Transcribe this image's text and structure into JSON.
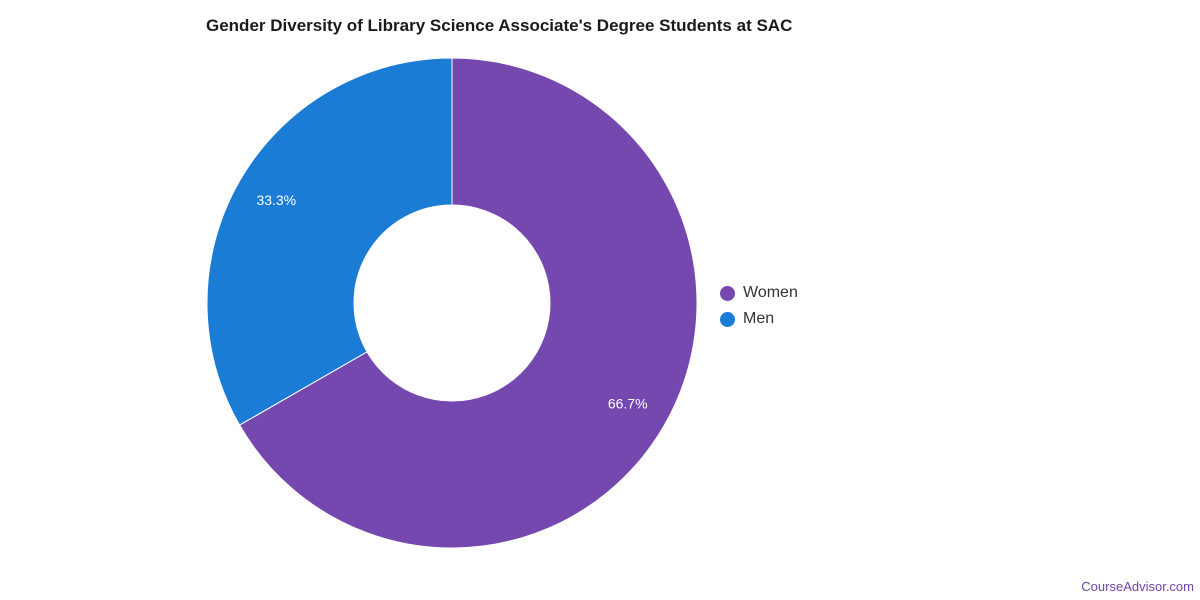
{
  "chart_data": {
    "type": "pie",
    "title": "Gender Diversity of Library Science Associate's Degree Students at SAC",
    "categories": [
      "Women",
      "Men"
    ],
    "values": [
      66.7,
      33.3
    ],
    "labels": [
      "66.7%",
      "33.3%"
    ],
    "colors": [
      "#7448ae",
      "#1a7cd4"
    ],
    "donut": true,
    "legend_position": "right"
  },
  "legend": {
    "items": [
      {
        "label": "Women",
        "color": "#7448ae"
      },
      {
        "label": "Men",
        "color": "#1a7cd4"
      }
    ]
  },
  "watermark": "CourseAdvisor.com"
}
